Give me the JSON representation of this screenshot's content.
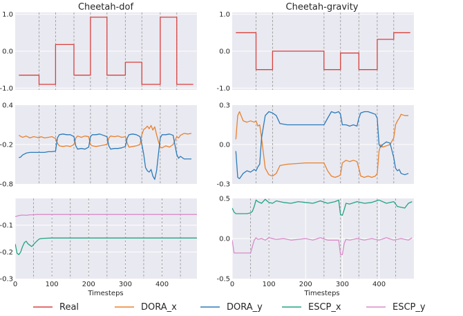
{
  "titles": {
    "left": "Cheetah-dof",
    "right": "Cheetah-gravity"
  },
  "xlabel": "Timesteps",
  "colors": {
    "panel_bg": "#e9e9f1",
    "grid": "#ffffff",
    "vline": "#9a9a9a"
  },
  "legend": [
    {
      "name": "Real",
      "color": "#d9403b"
    },
    {
      "name": "DORA_x",
      "color": "#e8812c"
    },
    {
      "name": "DORA_y",
      "color": "#2a7ab9"
    },
    {
      "name": "ESCP_x",
      "color": "#20a482"
    },
    {
      "name": "ESCP_y",
      "color": "#d98bc8"
    }
  ],
  "chart_data": [
    {
      "id": "left-real",
      "type": "line",
      "xlim": [
        0,
        495
      ],
      "ylim": [
        -1.05,
        1.05
      ],
      "xticks": [],
      "yticks": [
        1.0,
        0.0,
        -1.0
      ],
      "ytick_labels": [
        "1.0",
        "0.0",
        "-1.0"
      ],
      "change_points": [
        65,
        110,
        160,
        205,
        250,
        300,
        345,
        395,
        440
      ],
      "series": [
        {
          "color": "#d9403b",
          "step": true,
          "x": [
            10,
            65,
            110,
            160,
            205,
            250,
            300,
            345,
            395,
            440,
            485
          ],
          "y": [
            -0.65,
            -0.9,
            0.18,
            -0.65,
            0.92,
            -0.65,
            -0.3,
            -0.9,
            0.92,
            -0.9,
            -0.9
          ]
        }
      ]
    },
    {
      "id": "left-dora",
      "type": "line",
      "xlim": [
        0,
        495
      ],
      "ylim": [
        -0.8,
        0.4
      ],
      "xticks": [],
      "yticks": [
        0.4,
        -0.2,
        -0.8
      ],
      "ytick_labels": [
        "0.4",
        "-0.2",
        "-0.8"
      ],
      "change_points": [
        65,
        110,
        160,
        205,
        250,
        300,
        345,
        395,
        440
      ],
      "series": [
        {
          "color": "#e8812c",
          "x": [
            10,
            20,
            30,
            40,
            50,
            60,
            65,
            70,
            80,
            90,
            100,
            110,
            115,
            120,
            130,
            140,
            150,
            160,
            165,
            170,
            180,
            190,
            200,
            205,
            210,
            220,
            230,
            240,
            250,
            255,
            260,
            270,
            280,
            290,
            300,
            305,
            310,
            320,
            330,
            340,
            345,
            350,
            355,
            360,
            365,
            370,
            375,
            380,
            385,
            390,
            395,
            400,
            410,
            420,
            430,
            440,
            445,
            450,
            460,
            470,
            480
          ],
          "y": [
            -0.06,
            -0.09,
            -0.07,
            -0.1,
            -0.08,
            -0.09,
            -0.1,
            -0.08,
            -0.1,
            -0.09,
            -0.08,
            -0.11,
            -0.18,
            -0.22,
            -0.23,
            -0.22,
            -0.23,
            -0.2,
            -0.1,
            -0.07,
            -0.09,
            -0.07,
            -0.08,
            -0.2,
            -0.22,
            -0.23,
            -0.22,
            -0.21,
            -0.2,
            -0.1,
            -0.07,
            -0.08,
            -0.07,
            -0.09,
            -0.08,
            -0.18,
            -0.24,
            -0.23,
            -0.22,
            -0.2,
            -0.05,
            0.03,
            0.05,
            0.08,
            0.04,
            0.09,
            0.02,
            0.07,
            -0.05,
            -0.15,
            -0.24,
            -0.25,
            -0.22,
            -0.24,
            -0.2,
            -0.08,
            -0.1,
            -0.06,
            -0.03,
            -0.04,
            -0.03
          ]
        },
        {
          "color": "#2a7ab9",
          "x": [
            10,
            15,
            20,
            30,
            40,
            50,
            60,
            65,
            70,
            80,
            90,
            100,
            110,
            115,
            120,
            130,
            140,
            150,
            160,
            165,
            170,
            180,
            190,
            200,
            205,
            210,
            220,
            230,
            240,
            250,
            255,
            260,
            270,
            280,
            290,
            300,
            305,
            310,
            320,
            330,
            340,
            345,
            350,
            355,
            360,
            365,
            370,
            375,
            380,
            385,
            390,
            395,
            400,
            410,
            420,
            430,
            440,
            445,
            450,
            460,
            470,
            480
          ],
          "y": [
            -0.4,
            -0.39,
            -0.36,
            -0.33,
            -0.32,
            -0.32,
            -0.32,
            -0.32,
            -0.32,
            -0.32,
            -0.31,
            -0.31,
            -0.3,
            -0.1,
            -0.05,
            -0.04,
            -0.05,
            -0.05,
            -0.08,
            -0.22,
            -0.27,
            -0.26,
            -0.27,
            -0.24,
            -0.08,
            -0.05,
            -0.05,
            -0.04,
            -0.06,
            -0.08,
            -0.22,
            -0.27,
            -0.26,
            -0.26,
            -0.25,
            -0.23,
            -0.1,
            -0.05,
            -0.04,
            -0.05,
            -0.08,
            -0.2,
            -0.35,
            -0.55,
            -0.6,
            -0.62,
            -0.58,
            -0.68,
            -0.73,
            -0.6,
            -0.35,
            -0.1,
            -0.05,
            -0.05,
            -0.04,
            -0.06,
            -0.35,
            -0.41,
            -0.38,
            -0.42,
            -0.42,
            -0.42
          ]
        }
      ]
    },
    {
      "id": "left-escp",
      "type": "line",
      "xlim": [
        0,
        495
      ],
      "ylim": [
        -0.3,
        0.0
      ],
      "xticks": [
        0,
        100,
        200,
        300,
        400
      ],
      "xtick_labels": [
        "0",
        "100",
        "200",
        "300",
        "400"
      ],
      "yticks": [
        -0.1,
        -0.2,
        -0.3
      ],
      "ytick_labels": [
        "-0.1",
        "-0.2",
        "-0.3"
      ],
      "show_xlabel": true,
      "change_points": [
        50,
        100,
        150,
        200,
        250,
        300,
        350,
        400,
        450
      ],
      "series": [
        {
          "color": "#d98bc8",
          "x": [
            0,
            10,
            20,
            30,
            40,
            50,
            60,
            80,
            100,
            200,
            300,
            400,
            495
          ],
          "y": [
            -0.068,
            -0.064,
            -0.062,
            -0.063,
            -0.061,
            -0.061,
            -0.06,
            -0.06,
            -0.06,
            -0.06,
            -0.06,
            -0.06,
            -0.06
          ]
        },
        {
          "color": "#20a482",
          "x": [
            0,
            5,
            10,
            15,
            20,
            25,
            30,
            35,
            40,
            45,
            50,
            55,
            60,
            65,
            70,
            80,
            100,
            200,
            300,
            400,
            495
          ],
          "y": [
            -0.17,
            -0.205,
            -0.21,
            -0.2,
            -0.18,
            -0.165,
            -0.16,
            -0.17,
            -0.175,
            -0.18,
            -0.172,
            -0.165,
            -0.158,
            -0.152,
            -0.15,
            -0.149,
            -0.148,
            -0.148,
            -0.148,
            -0.148,
            -0.148
          ]
        }
      ]
    },
    {
      "id": "right-real",
      "type": "line",
      "xlim": [
        0,
        495
      ],
      "ylim": [
        -1.05,
        1.05
      ],
      "xticks": [],
      "yticks": [
        1.0,
        0.0,
        -1.0
      ],
      "ytick_labels": [
        "1.0",
        "0.0",
        "-1.0"
      ],
      "change_points": [
        65,
        110,
        250,
        295,
        345,
        395,
        440
      ],
      "series": [
        {
          "color": "#d9403b",
          "step": true,
          "x": [
            10,
            65,
            110,
            250,
            295,
            345,
            395,
            440,
            485
          ],
          "y": [
            0.5,
            -0.5,
            0.0,
            -0.5,
            -0.05,
            -0.5,
            0.32,
            0.5,
            0.5
          ]
        }
      ]
    },
    {
      "id": "right-dora",
      "type": "line",
      "xlim": [
        0,
        495
      ],
      "ylim": [
        -0.3,
        0.3
      ],
      "xticks": [],
      "yticks": [
        0.3,
        0.0,
        -0.3
      ],
      "ytick_labels": [
        "0.3",
        "0.0",
        "-0.3"
      ],
      "change_points": [
        65,
        110,
        250,
        295,
        345,
        395,
        440
      ],
      "series": [
        {
          "color": "#e8812c",
          "x": [
            10,
            15,
            20,
            30,
            40,
            50,
            60,
            65,
            70,
            75,
            80,
            90,
            100,
            110,
            120,
            130,
            150,
            200,
            250,
            260,
            270,
            280,
            290,
            295,
            300,
            310,
            320,
            330,
            340,
            345,
            350,
            360,
            370,
            380,
            390,
            395,
            400,
            405,
            410,
            420,
            430,
            440,
            445,
            450,
            455,
            460,
            470,
            480
          ],
          "y": [
            0.04,
            0.22,
            0.25,
            0.18,
            0.17,
            0.18,
            0.17,
            0.18,
            0.14,
            0.15,
            0.05,
            -0.18,
            -0.23,
            -0.24,
            -0.22,
            -0.16,
            -0.15,
            -0.14,
            -0.14,
            -0.2,
            -0.24,
            -0.25,
            -0.24,
            -0.23,
            -0.14,
            -0.12,
            -0.13,
            -0.12,
            -0.13,
            -0.18,
            -0.24,
            -0.25,
            -0.24,
            -0.25,
            -0.24,
            -0.22,
            -0.05,
            0.0,
            -0.02,
            -0.01,
            0.0,
            0.05,
            0.15,
            0.18,
            0.2,
            0.23,
            0.22,
            0.22
          ]
        },
        {
          "color": "#2a7ab9",
          "x": [
            10,
            15,
            20,
            30,
            40,
            50,
            60,
            65,
            70,
            75,
            80,
            90,
            100,
            110,
            120,
            130,
            150,
            200,
            250,
            260,
            270,
            280,
            290,
            295,
            300,
            310,
            320,
            330,
            340,
            345,
            350,
            360,
            370,
            380,
            390,
            395,
            400,
            405,
            410,
            420,
            430,
            440,
            445,
            450,
            455,
            460,
            470,
            480
          ],
          "y": [
            -0.05,
            -0.25,
            -0.26,
            -0.22,
            -0.2,
            -0.21,
            -0.19,
            -0.2,
            -0.17,
            -0.15,
            0.05,
            0.22,
            0.25,
            0.24,
            0.22,
            0.16,
            0.15,
            0.15,
            0.15,
            0.2,
            0.25,
            0.24,
            0.25,
            0.23,
            0.15,
            0.15,
            0.14,
            0.15,
            0.14,
            0.2,
            0.24,
            0.25,
            0.25,
            0.24,
            0.23,
            0.2,
            0.0,
            -0.02,
            0.0,
            0.02,
            0.01,
            -0.1,
            -0.18,
            -0.2,
            -0.19,
            -0.22,
            -0.23,
            -0.22
          ]
        }
      ]
    },
    {
      "id": "right-escp",
      "type": "line",
      "xlim": [
        0,
        495
      ],
      "ylim": [
        -0.5,
        0.5
      ],
      "xticks": [
        0,
        100,
        200,
        300,
        400
      ],
      "xtick_labels": [
        "0",
        "100",
        "200",
        "300",
        "400"
      ],
      "yticks": [
        0.5,
        0.0,
        -0.5
      ],
      "ytick_labels": [
        "0.5",
        "0.0",
        "-0.5"
      ],
      "show_xlabel": true,
      "change_points": [
        50,
        100,
        250,
        295,
        345,
        395,
        445
      ],
      "series": [
        {
          "color": "#20a482",
          "x": [
            0,
            5,
            10,
            20,
            30,
            40,
            50,
            55,
            60,
            65,
            70,
            80,
            90,
            100,
            110,
            120,
            140,
            160,
            180,
            200,
            220,
            240,
            260,
            280,
            290,
            295,
            300,
            305,
            310,
            320,
            340,
            360,
            380,
            400,
            420,
            440,
            450,
            460,
            470,
            480,
            490
          ],
          "y": [
            0.38,
            0.33,
            0.31,
            0.31,
            0.31,
            0.31,
            0.32,
            0.34,
            0.4,
            0.48,
            0.46,
            0.44,
            0.49,
            0.45,
            0.44,
            0.47,
            0.45,
            0.44,
            0.46,
            0.45,
            0.44,
            0.47,
            0.44,
            0.46,
            0.48,
            0.3,
            0.29,
            0.36,
            0.44,
            0.43,
            0.46,
            0.44,
            0.45,
            0.48,
            0.44,
            0.46,
            0.4,
            0.39,
            0.38,
            0.44,
            0.46
          ]
        },
        {
          "color": "#d98bc8",
          "x": [
            0,
            5,
            10,
            20,
            30,
            40,
            50,
            55,
            60,
            65,
            70,
            80,
            90,
            100,
            120,
            140,
            160,
            180,
            200,
            220,
            240,
            260,
            280,
            290,
            295,
            300,
            305,
            310,
            320,
            340,
            360,
            380,
            400,
            420,
            440,
            460,
            480,
            490
          ],
          "y": [
            -0.02,
            -0.18,
            -0.18,
            -0.18,
            -0.18,
            -0.18,
            -0.18,
            -0.1,
            -0.02,
            0.01,
            -0.01,
            0.0,
            -0.02,
            0.01,
            -0.01,
            0.0,
            -0.02,
            -0.01,
            0.0,
            -0.02,
            0.01,
            -0.02,
            -0.02,
            -0.02,
            -0.2,
            -0.2,
            -0.06,
            -0.01,
            -0.02,
            0.0,
            -0.02,
            0.0,
            -0.02,
            0.01,
            -0.02,
            0.0,
            -0.02,
            0.01
          ]
        }
      ]
    }
  ]
}
